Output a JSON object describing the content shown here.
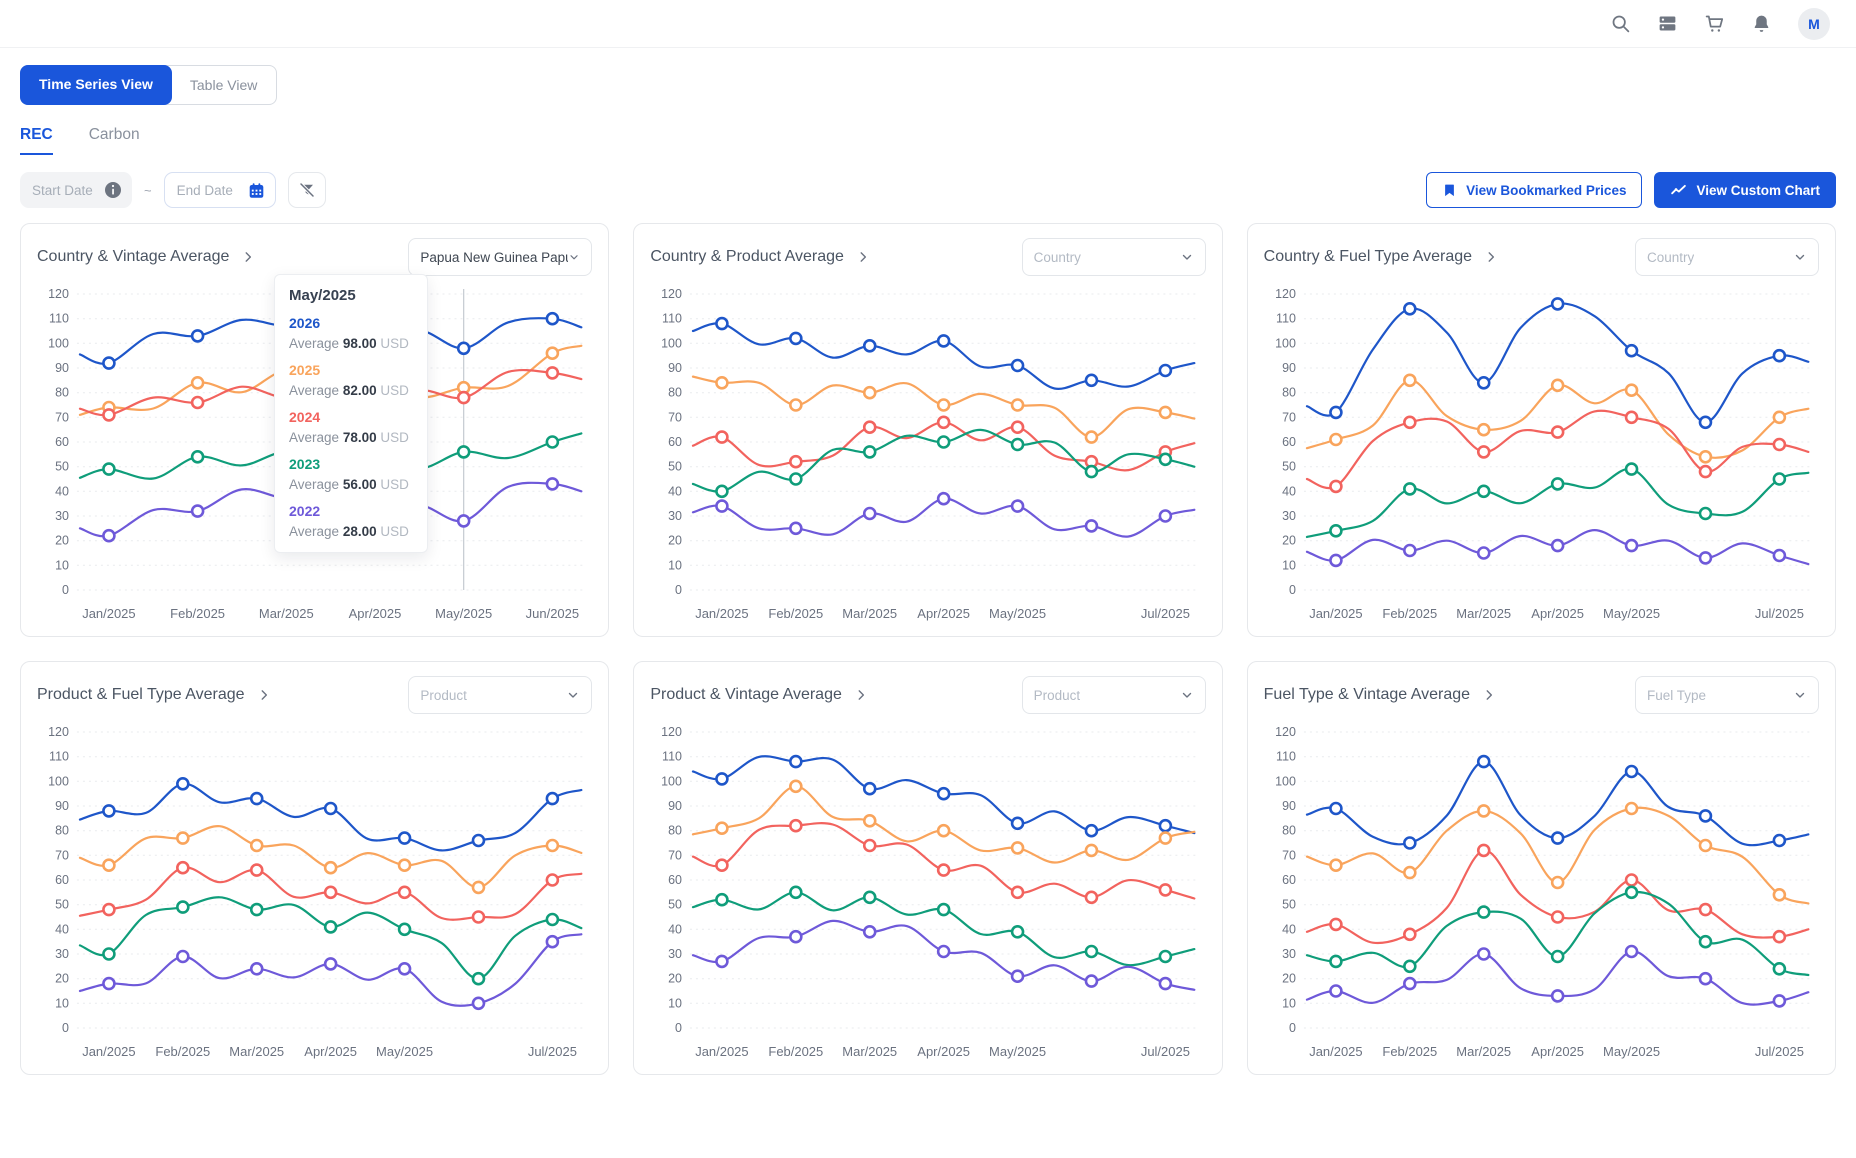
{
  "colors": {
    "accent": "#1a56db",
    "series": [
      "#1e56c9",
      "#f9a45c",
      "#f2635e",
      "#0f9d7a",
      "#6e59d9"
    ],
    "crosshair": "#c4c9d1"
  },
  "topbar": {
    "icons": [
      "search-icon",
      "server-stack-icon",
      "cart-icon",
      "bell-icon"
    ],
    "avatar_initial": "M"
  },
  "view_toggle": {
    "active": "Time Series View",
    "inactive": "Table View"
  },
  "tabs": {
    "active": "REC",
    "inactive": "Carbon"
  },
  "filters": {
    "start_date_placeholder": "Start Date",
    "separator": "~",
    "end_date_placeholder": "End Date"
  },
  "actions": {
    "bookmarked_label": "View Bookmarked Prices",
    "custom_chart_label": "View Custom Chart"
  },
  "tooltip": {
    "month": "May/2025",
    "average_label": "Average",
    "entries": [
      {
        "year": "2026",
        "value": "98.00",
        "currency": "USD"
      },
      {
        "year": "2025",
        "value": "82.00",
        "currency": "USD"
      },
      {
        "year": "2024",
        "value": "78.00",
        "currency": "USD"
      },
      {
        "year": "2023",
        "value": "56.00",
        "currency": "USD"
      },
      {
        "year": "2022",
        "value": "28.00",
        "currency": "USD"
      }
    ]
  },
  "chart_data": [
    {
      "type": "line",
      "title": "Country & Vintage Average",
      "dropdown": {
        "value": "Papua New Guinea Papua...",
        "placeholder": false
      },
      "ylim": [
        0,
        120
      ],
      "ystep": 10,
      "grid": true,
      "legend": "none",
      "x": [
        "Jan/2025",
        "Feb/2025",
        "Mar/2025",
        "Apr/2025",
        "May/2025",
        "Jun/2025"
      ],
      "hidden_x": [],
      "crosshair_index": 4,
      "series": [
        {
          "name": "2026",
          "values": [
            92,
            103,
            107,
            100,
            98,
            110
          ]
        },
        {
          "name": "2025",
          "values": [
            74,
            84,
            89,
            85,
            82,
            96
          ]
        },
        {
          "name": "2024",
          "values": [
            71,
            76,
            78,
            75,
            78,
            88
          ]
        },
        {
          "name": "2023",
          "values": [
            49,
            54,
            56,
            55,
            56,
            60
          ]
        },
        {
          "name": "2022",
          "values": [
            22,
            32,
            37,
            30,
            28,
            43
          ]
        }
      ]
    },
    {
      "type": "line",
      "title": "Country & Product Average",
      "dropdown": {
        "value": "Country",
        "placeholder": true
      },
      "ylim": [
        0,
        120
      ],
      "ystep": 10,
      "grid": true,
      "legend": "none",
      "x": [
        "Jan/2025",
        "Feb/2025",
        "Mar/2025",
        "Apr/2025",
        "May/2025",
        "Jun/2025",
        "Jul/2025"
      ],
      "hidden_x": [
        5
      ],
      "crosshair_index": null,
      "series": [
        {
          "values": [
            108,
            102,
            99,
            101,
            91,
            85,
            89
          ]
        },
        {
          "values": [
            84,
            75,
            80,
            75,
            75,
            62,
            72
          ]
        },
        {
          "values": [
            62,
            52,
            66,
            68,
            66,
            52,
            56
          ]
        },
        {
          "values": [
            40,
            45,
            56,
            60,
            59,
            48,
            53
          ]
        },
        {
          "values": [
            34,
            25,
            31,
            37,
            34,
            26,
            30
          ]
        }
      ]
    },
    {
      "type": "line",
      "title": "Country & Fuel Type Average",
      "dropdown": {
        "value": "Country",
        "placeholder": true
      },
      "ylim": [
        0,
        120
      ],
      "ystep": 10,
      "grid": true,
      "legend": "none",
      "x": [
        "Jan/2025",
        "Feb/2025",
        "Mar/2025",
        "Apr/2025",
        "May/2025",
        "Jun/2025",
        "Jul/2025"
      ],
      "hidden_x": [
        5
      ],
      "crosshair_index": null,
      "series": [
        {
          "values": [
            72,
            114,
            84,
            116,
            97,
            68,
            95
          ]
        },
        {
          "values": [
            61,
            85,
            65,
            83,
            81,
            54,
            70
          ]
        },
        {
          "values": [
            42,
            68,
            56,
            64,
            70,
            48,
            59
          ]
        },
        {
          "values": [
            24,
            41,
            40,
            43,
            49,
            31,
            45
          ]
        },
        {
          "values": [
            12,
            16,
            15,
            18,
            18,
            13,
            14
          ]
        }
      ]
    },
    {
      "type": "line",
      "title": "Product & Fuel Type Average",
      "dropdown": {
        "value": "Product",
        "placeholder": true
      },
      "ylim": [
        0,
        120
      ],
      "ystep": 10,
      "grid": true,
      "legend": "none",
      "x": [
        "Jan/2025",
        "Feb/2025",
        "Mar/2025",
        "Apr/2025",
        "May/2025",
        "Jun/2025",
        "Jul/2025"
      ],
      "hidden_x": [
        5
      ],
      "crosshair_index": null,
      "series": [
        {
          "values": [
            88,
            99,
            93,
            89,
            77,
            76,
            93
          ]
        },
        {
          "values": [
            66,
            77,
            74,
            65,
            66,
            57,
            74
          ]
        },
        {
          "values": [
            48,
            65,
            64,
            55,
            55,
            45,
            60
          ]
        },
        {
          "values": [
            30,
            49,
            48,
            41,
            40,
            20,
            44
          ]
        },
        {
          "values": [
            18,
            29,
            24,
            26,
            24,
            10,
            35
          ]
        }
      ]
    },
    {
      "type": "line",
      "title": "Product & Vintage Average",
      "dropdown": {
        "value": "Product",
        "placeholder": true
      },
      "ylim": [
        0,
        120
      ],
      "ystep": 10,
      "grid": true,
      "legend": "none",
      "x": [
        "Jan/2025",
        "Feb/2025",
        "Mar/2025",
        "Apr/2025",
        "May/2025",
        "Jun/2025",
        "Jul/2025"
      ],
      "hidden_x": [
        5
      ],
      "crosshair_index": null,
      "series": [
        {
          "values": [
            101,
            108,
            97,
            95,
            83,
            80,
            82
          ]
        },
        {
          "values": [
            81,
            98,
            84,
            80,
            73,
            72,
            77
          ]
        },
        {
          "values": [
            66,
            82,
            74,
            64,
            55,
            53,
            56
          ]
        },
        {
          "values": [
            52,
            55,
            53,
            48,
            39,
            31,
            29
          ]
        },
        {
          "values": [
            27,
            37,
            39,
            31,
            21,
            19,
            18
          ]
        }
      ]
    },
    {
      "type": "line",
      "title": "Fuel Type & Vintage Average",
      "dropdown": {
        "value": "Fuel Type",
        "placeholder": true
      },
      "ylim": [
        0,
        120
      ],
      "ystep": 10,
      "grid": true,
      "legend": "none",
      "x": [
        "Jan/2025",
        "Feb/2025",
        "Mar/2025",
        "Apr/2025",
        "May/2025",
        "Jun/2025",
        "Jul/2025"
      ],
      "hidden_x": [
        5
      ],
      "crosshair_index": null,
      "series": [
        {
          "values": [
            89,
            75,
            108,
            77,
            104,
            86,
            76
          ]
        },
        {
          "values": [
            66,
            63,
            88,
            59,
            89,
            74,
            54
          ]
        },
        {
          "values": [
            42,
            38,
            72,
            45,
            60,
            48,
            37
          ]
        },
        {
          "values": [
            27,
            25,
            47,
            29,
            55,
            35,
            24
          ]
        },
        {
          "values": [
            15,
            18,
            30,
            13,
            31,
            20,
            11
          ]
        }
      ]
    }
  ]
}
